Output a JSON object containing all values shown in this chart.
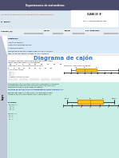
{
  "title": "Diagrama de cajón",
  "title_color": "#3a7abf",
  "page_bg": "#ffffff",
  "header_dark_color": "#4a4a6a",
  "header_light_color": "#dce8f0",
  "header_right_bg": "#ffffff",
  "sidebar_color": "#b8cce4",
  "objectives_bg": "#ddeeff",
  "teal_bg": "#c8ede4",
  "info_row_bg": "#e8eef4",
  "box_fill": "#f5c518",
  "box_edge": "#c8860a",
  "answer_box_bg": "#f0f0f0",
  "torn_bg": "#c0c8d8",
  "header_text": "Departamento de matemáticas",
  "class_text": "CLASE 33  8°",
  "teacher_text": "Prof.: Francisco Benavides",
  "desc_text": "Ficha de trabajo para inferir información estadística y comparar muestras.",
  "rnpas_text": "N° RNPAS",
  "student_label": "Alumno (a):",
  "course_label": "Curso:",
  "date_label": "Fecha:",
  "score_label": "Pje. obtenido:",
  "logro_text": "Logro",
  "obj_title": "Objetivos:",
  "obj1": "• Identificar cuartiles.",
  "obj2": "• Interpretar diagramas de cajón.",
  "obj3": "• Comparar muestras.",
  "instr": "Lee atentamente: En esta ficha deberás demostrar los conocimientos adquiridos para dar respuesta al trabajo correspondiente a la clase, sólo de uso educativo.",
  "activity1": "Actividad 1: Identifica cuartiles en un grupo de tensiones sobre cables cuyos datos están organizados cronológicamente.",
  "data_nums": [
    40,
    5,
    6,
    13,
    15,
    18,
    24,
    15,
    31
  ],
  "ordered_nums": [
    5,
    6,
    13,
    15,
    15,
    18,
    24,
    31,
    40
  ],
  "q1": 9,
  "q2": 15,
  "q3": 24,
  "data_min": 5,
  "data_max": 40,
  "tick_max": 40,
  "ticks": [
    0,
    5,
    10,
    15,
    20,
    25,
    30,
    35,
    40
  ],
  "big_ticks": [
    0,
    5,
    10,
    15,
    20,
    25,
    30
  ],
  "big_q1": 8,
  "big_q2": 15,
  "big_q3": 22,
  "big_min": 2,
  "big_max": 28
}
